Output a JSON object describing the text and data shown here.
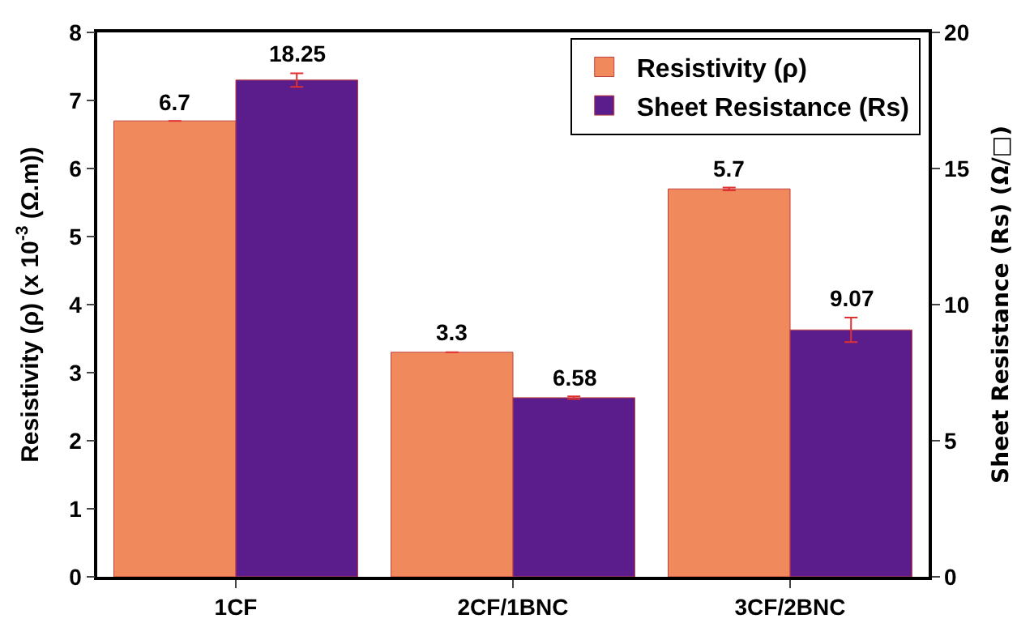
{
  "chart_data": {
    "type": "bar",
    "categories": [
      "1CF",
      "2CF/1BNC",
      "3CF/2BNC"
    ],
    "series": [
      {
        "name": "Resistivity (ρ)",
        "color": "#f08a5d",
        "values": [
          6.7,
          3.3,
          5.7
        ],
        "errors": [
          null,
          null,
          0.02
        ]
      },
      {
        "name": "Sheet Resistance (Rs)",
        "color": "#5b1d8c",
        "values": [
          18.25,
          6.58,
          9.07
        ],
        "errors": [
          0.25,
          0.05,
          0.45
        ],
        "axis": "y2"
      }
    ],
    "ylabel": "Resistivity (ρ) (x 10$^{-3}$ (Ω.m))",
    "y2label": "Sheet Resistance (Rs) (Ω/□)",
    "ylim": [
      0,
      8
    ],
    "yticks": [
      0,
      1,
      2,
      3,
      4,
      5,
      6,
      7,
      8
    ],
    "y2lim": [
      0,
      20
    ],
    "y2ticks": [
      0,
      5,
      10,
      15,
      20
    ],
    "data_labels": true,
    "legend": "top right"
  }
}
